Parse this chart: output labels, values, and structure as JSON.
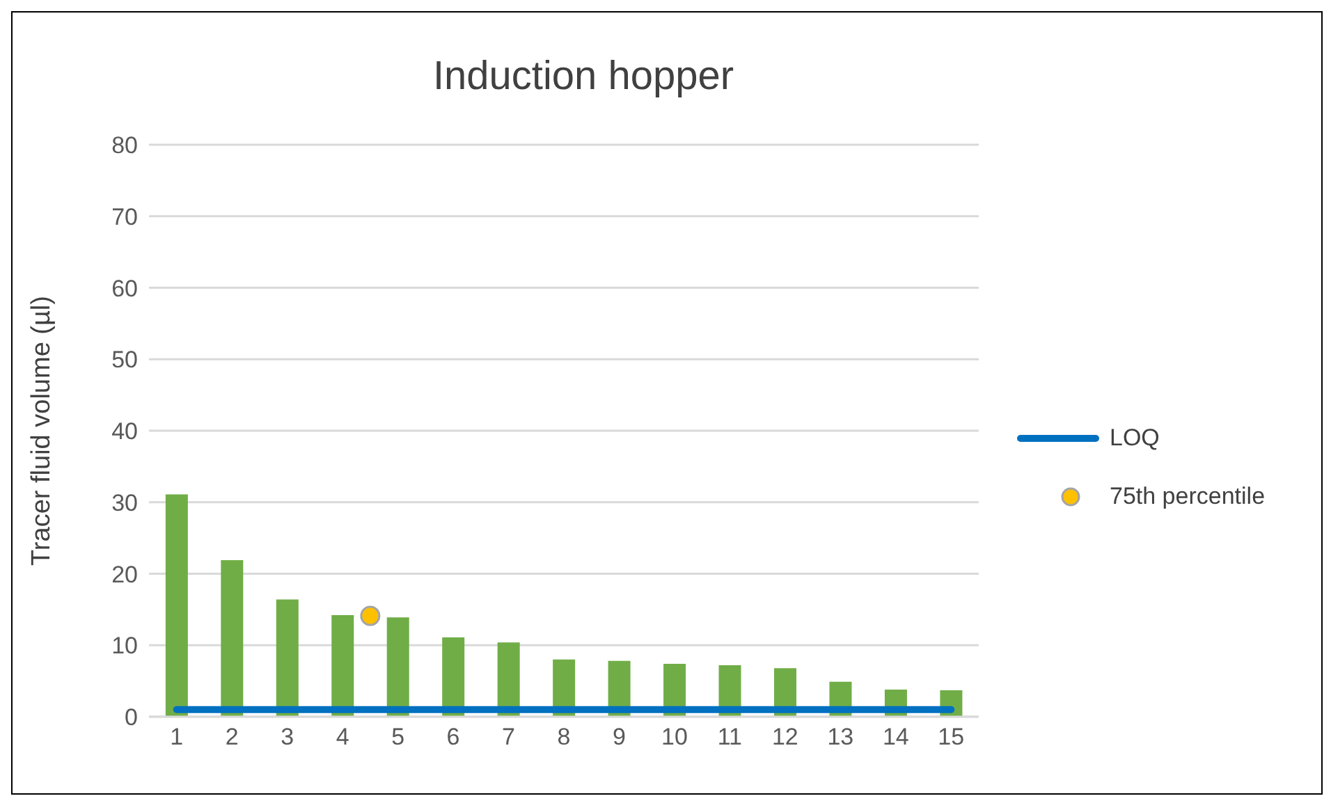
{
  "chart_data": {
    "type": "bar",
    "title": "Induction hopper",
    "ylabel": "Tracer fluid volume (µl)",
    "x": [
      1,
      2,
      3,
      4,
      5,
      6,
      7,
      8,
      9,
      10,
      11,
      12,
      13,
      14,
      15
    ],
    "xlim": [
      0.5,
      15.5
    ],
    "xticks": [
      1,
      2,
      3,
      4,
      5,
      6,
      7,
      8,
      9,
      10,
      11,
      12,
      13,
      14,
      15
    ],
    "ylim": [
      0,
      80
    ],
    "yticks": [
      0,
      10,
      20,
      30,
      40,
      50,
      60,
      70,
      80
    ],
    "grid": "y",
    "legend": "right",
    "series": [
      {
        "color": "#70ad47",
        "values": [
          31.1,
          21.9,
          16.4,
          14.2,
          13.9,
          11.1,
          10.4,
          8.0,
          7.8,
          7.4,
          7.2,
          6.8,
          4.9,
          3.8,
          3.7
        ]
      },
      {
        "type": "line",
        "name": "LOQ",
        "color": "#0070c0",
        "x": [
          1,
          15
        ],
        "values": [
          1,
          1
        ]
      },
      {
        "type": "scatter",
        "name": "75th percentile",
        "color": "#ffc000",
        "x": [
          4.5
        ],
        "values": [
          14.1
        ]
      }
    ]
  }
}
